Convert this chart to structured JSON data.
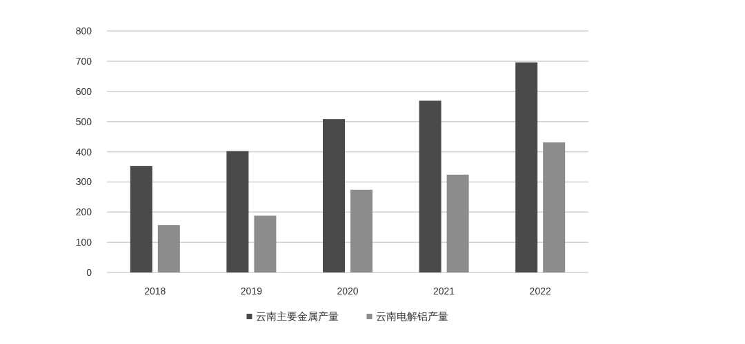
{
  "chart_data": {
    "type": "bar",
    "categories": [
      "2018",
      "2019",
      "2020",
      "2021",
      "2022"
    ],
    "series": [
      {
        "name": "云南主要金属产量",
        "color": "#4a4a4a",
        "values": [
          353,
          402,
          508,
          569,
          696
        ]
      },
      {
        "name": "云南电解铝产量",
        "color": "#8c8c8c",
        "values": [
          157,
          188,
          274,
          324,
          431
        ]
      }
    ],
    "ylim": [
      0,
      800
    ],
    "yticks": [
      0,
      100,
      200,
      300,
      400,
      500,
      600,
      700,
      800
    ],
    "grid": "y",
    "legend": "bottom"
  }
}
